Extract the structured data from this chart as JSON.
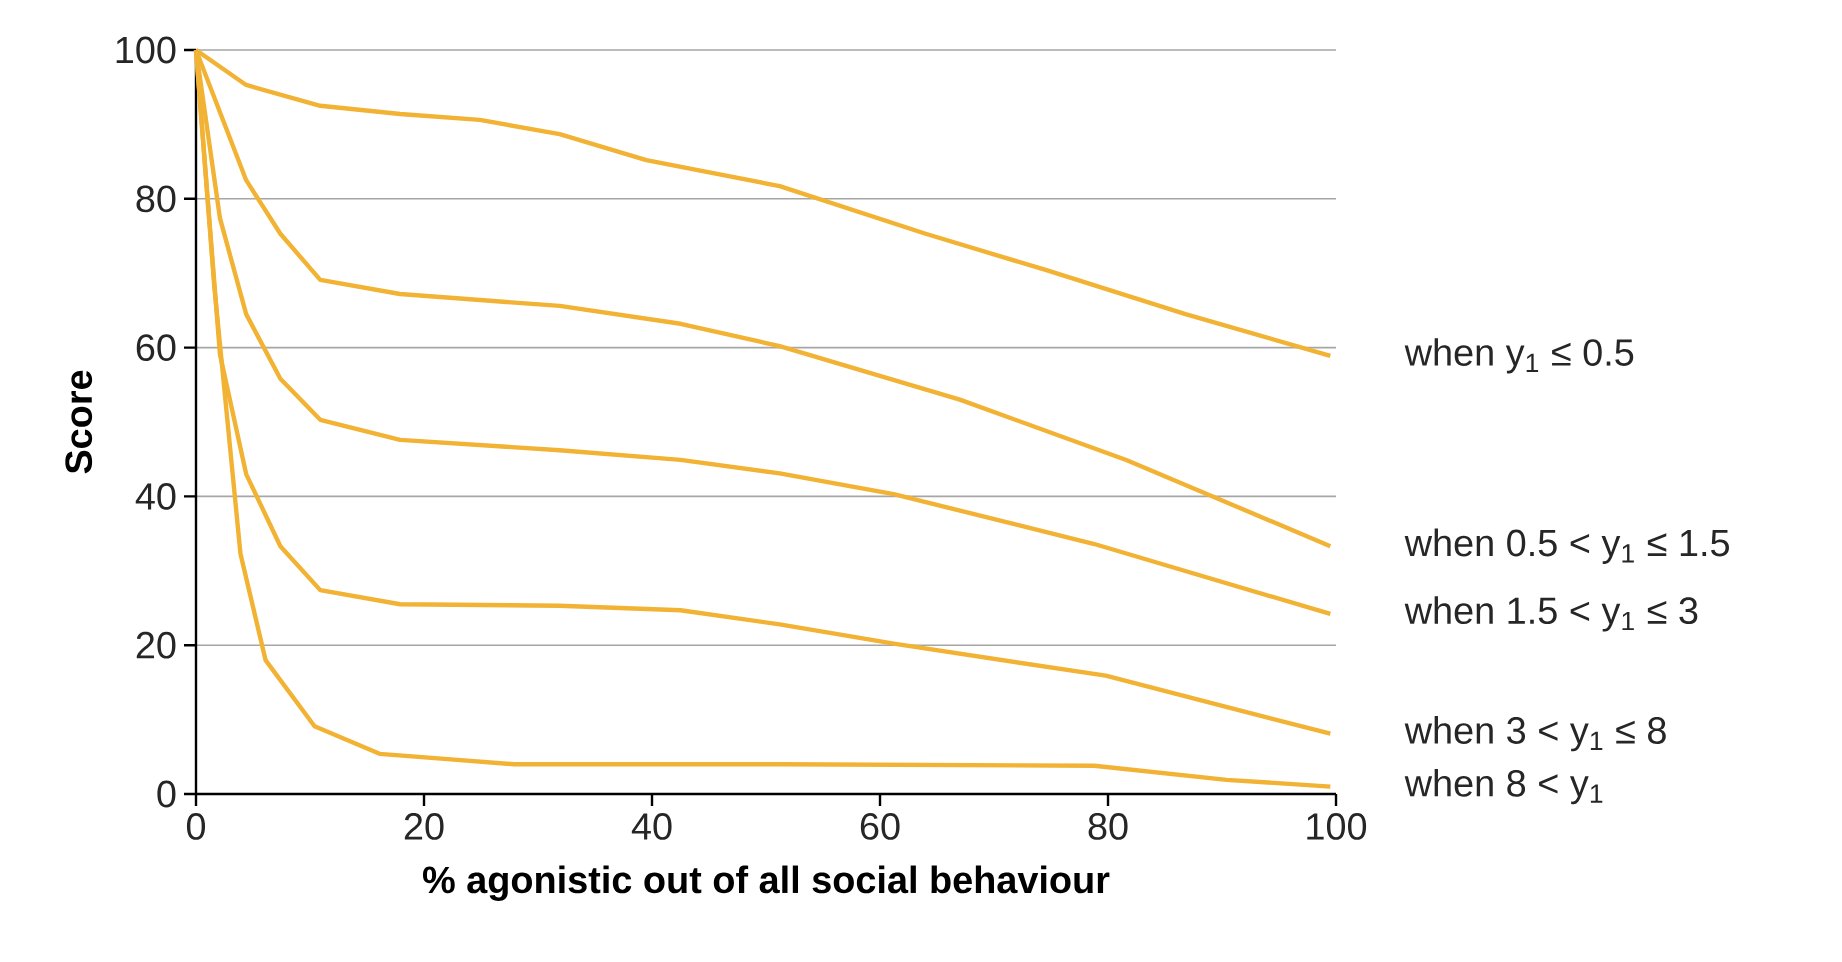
{
  "chart_data": {
    "type": "line",
    "xlabel": "% agonistic out of all social behaviour",
    "ylabel": "Score",
    "xlim": [
      0,
      100
    ],
    "ylim": [
      0,
      100
    ],
    "xticks": [
      0,
      20,
      40,
      60,
      80,
      100
    ],
    "yticks": [
      0,
      20,
      40,
      60,
      80,
      100
    ],
    "grid": "y",
    "legend": false,
    "marker": "none",
    "line_style": "solid",
    "series": [
      {
        "name": "when y$_{1}$ ≤ 0.5",
        "color": "#f2b233",
        "x": [
          0,
          4.4,
          10.9,
          17.9,
          24.9,
          31.9,
          39.5,
          51.2,
          64,
          74.6,
          86.8,
          99.5
        ],
        "values": [
          100,
          95.3,
          92.5,
          91.4,
          90.6,
          88.7,
          85.2,
          81.7,
          75.3,
          70.4,
          64.5,
          58.9
        ]
      },
      {
        "name": "when 0.5 < y$_{1}$ ≤ 1.5",
        "color": "#f2b233",
        "x": [
          0,
          4.4,
          7.4,
          10.9,
          17.9,
          31.9,
          42.5,
          51.2,
          67,
          81.6,
          99.5
        ],
        "values": [
          100,
          82.5,
          75.3,
          69.1,
          67.2,
          65.6,
          63.2,
          60.2,
          53,
          44.9,
          33.3
        ]
      },
      {
        "name": "when 1.5 < y$_{1}$ ≤ 3",
        "color": "#f2b233",
        "x": [
          0,
          2.1,
          4.4,
          7.4,
          10.9,
          17.9,
          31.9,
          42.5,
          51.2,
          61.2,
          78.8,
          99.5
        ],
        "values": [
          100,
          77.4,
          64.5,
          55.8,
          50.3,
          47.6,
          46.2,
          44.9,
          43.1,
          40.3,
          33.6,
          24.2
        ]
      },
      {
        "name": "when 3 < y$_{1}$ ≤ 8",
        "color": "#f2b233",
        "x": [
          0,
          2.1,
          4.4,
          7.4,
          10.9,
          17.9,
          31.9,
          42.5,
          51.2,
          61.2,
          79.8,
          99.5
        ],
        "values": [
          100,
          59.1,
          43,
          33.3,
          27.4,
          25.5,
          25.3,
          24.7,
          22.8,
          20.2,
          15.9,
          8.1
        ]
      },
      {
        "name": "when 8 < y$_{1}$",
        "color": "#f2b233",
        "x": [
          0,
          1.6,
          3.9,
          6.1,
          10.4,
          16.1,
          27.9,
          51.2,
          78.8,
          90.4,
          99.5
        ],
        "values": [
          100,
          68.3,
          32.3,
          18,
          9.1,
          5.4,
          4,
          4,
          3.8,
          1.9,
          1
        ]
      }
    ]
  }
}
